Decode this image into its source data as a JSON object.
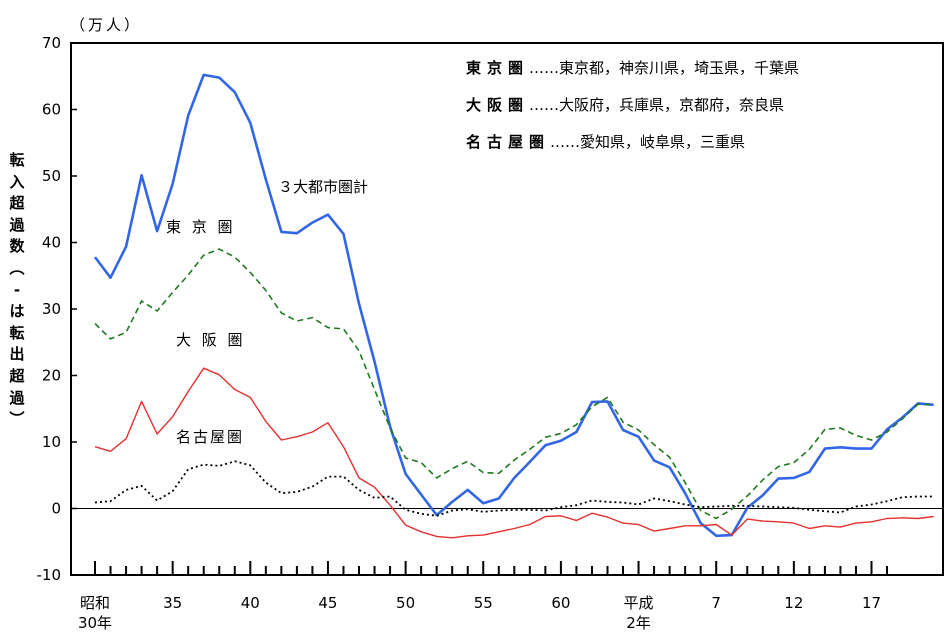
{
  "chart_data": {
    "type": "line",
    "unit_label": "（万人）",
    "ylabel": "転入超過数（-は転出超過）",
    "ylim": [
      -10,
      70
    ],
    "yticks": [
      -10,
      0,
      10,
      20,
      30,
      40,
      50,
      60,
      70
    ],
    "x_start_year": 30,
    "x_end_year": 81,
    "x_ticks": [
      {
        "label": "昭和",
        "sub": "30年",
        "year": 30
      },
      {
        "label": "35",
        "sub": "",
        "year": 35
      },
      {
        "label": "40",
        "sub": "",
        "year": 40
      },
      {
        "label": "45",
        "sub": "",
        "year": 45
      },
      {
        "label": "50",
        "sub": "",
        "year": 50
      },
      {
        "label": "55",
        "sub": "",
        "year": 55
      },
      {
        "label": "60",
        "sub": "",
        "year": 60
      },
      {
        "label": "平成",
        "sub": "2年",
        "year": 65
      },
      {
        "label": "7",
        "sub": "",
        "year": 70
      },
      {
        "label": "12",
        "sub": "",
        "year": 75
      },
      {
        "label": "17",
        "sub": "",
        "year": 80
      }
    ],
    "legend": [
      {
        "region": "東京圏",
        "desc": "……東京都，神奈川県，埼玉県，千葉県"
      },
      {
        "region": "大阪圏",
        "desc": "……大阪府，兵庫県，京都府，奈良県"
      },
      {
        "region": "名古屋圏",
        "desc": "……愛知県，岐阜県，三重県"
      }
    ],
    "series": [
      {
        "name": "３大都市圏計",
        "color": "#3366e6",
        "style": "solid",
        "values": [
          37.8,
          34.7,
          39.4,
          50.1,
          41.7,
          48.8,
          59.1,
          65.2,
          64.8,
          62.6,
          58.0,
          49.5,
          41.6,
          41.4,
          43.0,
          44.2,
          41.3,
          30.8,
          22.1,
          12.3,
          5.2,
          2.1,
          -1.0,
          1.0,
          2.8,
          0.8,
          1.5,
          4.6,
          7.0,
          9.5,
          10.2,
          11.5,
          16.0,
          16.1,
          11.8,
          10.8,
          7.2,
          6.2,
          2.3,
          -2.2,
          -4.1,
          -4.0,
          0.1,
          2.0,
          4.5,
          4.6,
          5.5,
          9.0,
          9.2,
          9.0,
          9.0,
          11.9,
          13.7,
          15.8,
          15.6
        ]
      },
      {
        "name": "東 京 圏",
        "color": "#1f7a1f",
        "style": "dashed",
        "values": [
          27.8,
          25.5,
          26.5,
          31.2,
          29.7,
          32.5,
          35.1,
          38.1,
          39.0,
          37.8,
          35.5,
          32.8,
          29.4,
          28.2,
          28.7,
          27.2,
          27.0,
          23.7,
          17.9,
          12.1,
          7.6,
          6.9,
          4.6,
          6.0,
          7.1,
          5.4,
          5.3,
          7.3,
          8.9,
          10.7,
          11.3,
          12.6,
          15.3,
          16.7,
          13.0,
          11.8,
          9.6,
          7.7,
          3.9,
          -0.3,
          -1.5,
          -0.1,
          1.9,
          4.3,
          6.3,
          6.9,
          8.9,
          11.9,
          12.1,
          11.0,
          10.3,
          11.5,
          13.5,
          15.7,
          15.6
        ]
      },
      {
        "name": "大 阪 圏",
        "color": "#e53030",
        "style": "solid",
        "values": [
          9.3,
          8.6,
          10.5,
          16.1,
          11.2,
          13.8,
          17.6,
          21.1,
          20.1,
          17.9,
          16.7,
          13.1,
          10.3,
          10.8,
          11.5,
          12.9,
          9.3,
          4.6,
          3.2,
          0.5,
          -2.5,
          -3.5,
          -4.2,
          -4.4,
          -4.1,
          -4.0,
          -3.5,
          -3.0,
          -2.4,
          -1.2,
          -1.1,
          -1.8,
          -0.7,
          -1.3,
          -2.2,
          -2.4,
          -3.4,
          -3.0,
          -2.6,
          -2.6,
          -2.4,
          -4.0,
          -1.6,
          -1.9,
          -2.0,
          -2.2,
          -3.0,
          -2.6,
          -2.8,
          -2.2,
          -2.0,
          -1.5,
          -1.4,
          -1.5,
          -1.2
        ]
      },
      {
        "name": "名古屋圏",
        "color": "#000000",
        "style": "dotted",
        "values": [
          0.9,
          1.1,
          2.8,
          3.4,
          1.2,
          2.6,
          5.9,
          6.6,
          6.4,
          7.1,
          6.5,
          3.9,
          2.3,
          2.5,
          3.3,
          4.8,
          4.8,
          2.8,
          1.6,
          1.8,
          -0.2,
          -0.8,
          -1.1,
          -0.3,
          -0.1,
          -0.5,
          -0.3,
          -0.2,
          -0.2,
          -0.3,
          0.2,
          0.5,
          1.2,
          1.0,
          0.9,
          0.6,
          1.5,
          1.1,
          0.6,
          0.2,
          0.3,
          0.4,
          0.4,
          0.3,
          0.2,
          0.1,
          -0.2,
          -0.4,
          -0.6,
          0.3,
          0.6,
          1.1,
          1.7,
          1.8,
          1.8
        ]
      }
    ]
  }
}
